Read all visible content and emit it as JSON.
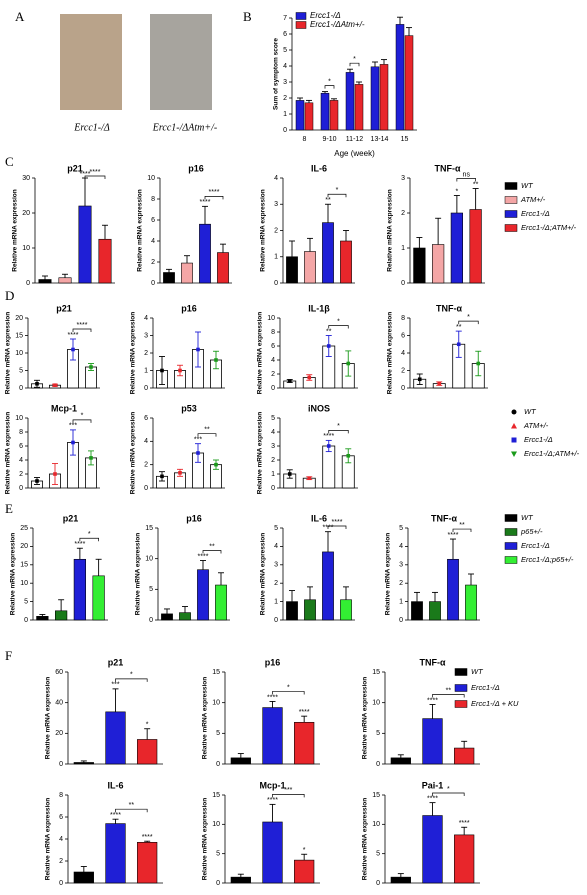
{
  "figure": {
    "panels": [
      "A",
      "B",
      "C",
      "D",
      "E",
      "F"
    ],
    "photo_captions": [
      "Ercc1-/Δ",
      "Ercc1-/ΔAtm+/-"
    ]
  },
  "legends": [
    {
      "panel": "C",
      "items": [
        {
          "name": "WT",
          "color": "#000000"
        },
        {
          "name": "ATM+/-",
          "color": "#f4a6a6"
        },
        {
          "name": "Ercc1-/Δ",
          "color": "#1f1fd6"
        },
        {
          "name": "Ercc1-/Δ;ATM+/-",
          "color": "#e8262b"
        }
      ]
    },
    {
      "panel": "D",
      "items": [
        {
          "name": "WT",
          "color": "#000000",
          "marker": "circle"
        },
        {
          "name": "ATM+/-",
          "color": "#e8262b",
          "marker": "triangle"
        },
        {
          "name": "Ercc1-/Δ",
          "color": "#1f1fd6",
          "marker": "square"
        },
        {
          "name": "Ercc1-/Δ;ATM+/-",
          "color": "#1a9a1a",
          "marker": "triangle-down"
        }
      ]
    },
    {
      "panel": "E",
      "items": [
        {
          "name": "WT",
          "color": "#000000"
        },
        {
          "name": "p65+/-",
          "color": "#1a7a1a"
        },
        {
          "name": "Ercc1-/Δ",
          "color": "#1f1fd6"
        },
        {
          "name": "Ercc1-/Δ;p65+/-",
          "color": "#33ee33"
        }
      ]
    },
    {
      "panel": "F",
      "items": [
        {
          "name": "WT",
          "color": "#000000"
        },
        {
          "name": "Ercc1-/Δ",
          "color": "#1f1fd6"
        },
        {
          "name": "Ercc1-/Δ + KU",
          "color": "#e8262b"
        }
      ]
    }
  ],
  "chart_data": [
    {
      "type": "grouped_bar",
      "ylabel": "Sum of symptom score",
      "xlabel": "Age (week)",
      "categories": [
        "8",
        "9-10",
        "11-12",
        "13-14",
        "15"
      ],
      "series": [
        {
          "name": "Ercc1-/Δ",
          "color": "#1f1fd6",
          "values": [
            1.85,
            2.3,
            3.6,
            3.95,
            6.6
          ],
          "errors": [
            0.15,
            0.1,
            0.2,
            0.3,
            0.45
          ]
        },
        {
          "name": "Ercc1-/ΔAtm+/-",
          "color": "#e8262b",
          "values": [
            1.7,
            1.85,
            2.85,
            4.1,
            5.9
          ],
          "errors": [
            0.15,
            0.1,
            0.15,
            0.3,
            0.5
          ]
        }
      ],
      "brackets": [
        {
          "category": 1,
          "label": "*"
        },
        {
          "category": 2,
          "label": "*"
        }
      ],
      "ylim": [
        0,
        7
      ],
      "yticks": [
        0,
        1,
        2,
        3,
        4,
        5,
        6,
        7
      ]
    },
    {
      "type": "bar",
      "title": "p21",
      "ylabel": "Relative mRNA expression",
      "style": "filled",
      "colors": [
        "#000000",
        "#f4a6a6",
        "#1f1fd6",
        "#e8262b"
      ],
      "values": [
        1,
        1.5,
        22,
        12.5
      ],
      "errors": [
        1,
        1,
        8,
        4
      ],
      "stars": [
        null,
        null,
        "****",
        null
      ],
      "bracket": {
        "from": 2,
        "to": 3,
        "label": "****"
      },
      "ylim": [
        0,
        30
      ],
      "yticks": [
        0,
        10,
        20,
        30
      ]
    },
    {
      "type": "bar",
      "title": "p16",
      "ylabel": "Relative mRNA expression",
      "style": "filled",
      "colors": [
        "#000000",
        "#f4a6a6",
        "#1f1fd6",
        "#e8262b"
      ],
      "values": [
        1,
        1.9,
        5.6,
        2.9
      ],
      "errors": [
        0.3,
        0.7,
        1.7,
        0.8
      ],
      "stars": [
        null,
        null,
        "****",
        null
      ],
      "bracket": {
        "from": 2,
        "to": 3,
        "label": "****"
      },
      "ylim": [
        0,
        10
      ],
      "yticks": [
        0,
        2,
        4,
        6,
        8,
        10
      ]
    },
    {
      "type": "bar",
      "title": "IL-6",
      "ylabel": "Relative mRNA expression",
      "style": "filled",
      "colors": [
        "#000000",
        "#f4a6a6",
        "#1f1fd6",
        "#e8262b"
      ],
      "values": [
        1,
        1.2,
        2.3,
        1.6
      ],
      "errors": [
        0.6,
        0.5,
        0.7,
        0.4
      ],
      "stars": [
        null,
        null,
        "**",
        null
      ],
      "bracket": {
        "from": 2,
        "to": 3,
        "label": "*"
      },
      "ylim": [
        0,
        4
      ],
      "yticks": [
        0,
        1,
        2,
        3,
        4
      ]
    },
    {
      "type": "bar",
      "title": "TNF-α",
      "ylabel": "Relative mRNA expression",
      "style": "filled",
      "colors": [
        "#000000",
        "#f4a6a6",
        "#1f1fd6",
        "#e8262b"
      ],
      "values": [
        1,
        1.1,
        2.0,
        2.1
      ],
      "errors": [
        0.3,
        0.75,
        0.5,
        0.6
      ],
      "stars": [
        null,
        null,
        "*",
        "**"
      ],
      "bracket": {
        "from": 2,
        "to": 3,
        "label": "ns"
      },
      "ylim": [
        0,
        3
      ],
      "yticks": [
        0,
        1,
        2,
        3
      ]
    },
    {
      "type": "bar",
      "title": "p21",
      "ylabel": "Relative mRNA expression",
      "style": "outline",
      "colors": [
        "#000000",
        "#e8262b",
        "#1f1fd6",
        "#1a9a1a"
      ],
      "values": [
        1.2,
        0.8,
        11,
        6
      ],
      "errors": [
        1,
        0.3,
        3,
        1
      ],
      "stars": [
        null,
        null,
        "****",
        null
      ],
      "bracket": {
        "from": 2,
        "to": 3,
        "label": "****"
      },
      "ylim": [
        0,
        20
      ],
      "yticks": [
        0,
        5,
        10,
        15,
        20
      ]
    },
    {
      "type": "bar",
      "title": "p16",
      "ylabel": "Relative mRNA expression",
      "style": "outline",
      "colors": [
        "#000000",
        "#e8262b",
        "#1f1fd6",
        "#1a9a1a"
      ],
      "values": [
        1,
        1,
        2.2,
        1.6
      ],
      "errors": [
        0.8,
        0.3,
        1,
        0.5
      ],
      "stars": [
        null,
        null,
        null,
        null
      ],
      "ylim": [
        0,
        4
      ],
      "yticks": [
        0,
        1,
        2,
        3,
        4
      ]
    },
    {
      "type": "bar",
      "title": "IL-1β",
      "ylabel": "Relative mRNA expression",
      "style": "outline",
      "colors": [
        "#000000",
        "#e8262b",
        "#1f1fd6",
        "#1a9a1a"
      ],
      "values": [
        1,
        1.5,
        6,
        3.5
      ],
      "errors": [
        0.2,
        0.4,
        1.5,
        1.8
      ],
      "stars": [
        null,
        null,
        "**",
        null
      ],
      "bracket": {
        "from": 2,
        "to": 3,
        "label": "*"
      },
      "ylim": [
        0,
        10
      ],
      "yticks": [
        0,
        2,
        4,
        6,
        8,
        10
      ]
    },
    {
      "type": "bar",
      "title": "TNF-α",
      "ylabel": "Relative mRNA expression",
      "style": "outline",
      "colors": [
        "#000000",
        "#e8262b",
        "#1f1fd6",
        "#1a9a1a"
      ],
      "values": [
        1,
        0.5,
        5,
        2.8
      ],
      "errors": [
        0.6,
        0.2,
        1.5,
        1.4
      ],
      "stars": [
        null,
        null,
        "**",
        null
      ],
      "bracket": {
        "from": 2,
        "to": 3,
        "label": "*"
      },
      "ylim": [
        0,
        8
      ],
      "yticks": [
        0,
        2,
        4,
        6,
        8
      ]
    },
    {
      "type": "bar",
      "title": "Mcp-1",
      "ylabel": "Relative mRNA expression",
      "style": "outline",
      "colors": [
        "#000000",
        "#e8262b",
        "#1f1fd6",
        "#1a9a1a"
      ],
      "values": [
        1,
        2,
        6.5,
        4.3
      ],
      "errors": [
        0.5,
        1.5,
        1.8,
        1
      ],
      "stars": [
        null,
        null,
        "***",
        null
      ],
      "bracket": {
        "from": 2,
        "to": 3,
        "label": "*"
      },
      "ylim": [
        0,
        10
      ],
      "yticks": [
        0,
        2,
        4,
        6,
        8,
        10
      ]
    },
    {
      "type": "bar",
      "title": "p53",
      "ylabel": "Relative mRNA expression",
      "style": "outline",
      "colors": [
        "#000000",
        "#e8262b",
        "#1f1fd6",
        "#1a9a1a"
      ],
      "values": [
        1,
        1.3,
        3,
        2
      ],
      "errors": [
        0.4,
        0.3,
        0.8,
        0.4
      ],
      "stars": [
        null,
        null,
        "***",
        null
      ],
      "bracket": {
        "from": 2,
        "to": 3,
        "label": "**"
      },
      "ylim": [
        0,
        6
      ],
      "yticks": [
        0,
        2,
        4,
        6
      ]
    },
    {
      "type": "bar",
      "title": "iNOS",
      "ylabel": "Relative mRNA expression",
      "style": "outline",
      "colors": [
        "#000000",
        "#e8262b",
        "#1f1fd6",
        "#1a9a1a"
      ],
      "values": [
        1,
        0.7,
        3,
        2.3
      ],
      "errors": [
        0.3,
        0.1,
        0.4,
        0.5
      ],
      "stars": [
        null,
        null,
        "****",
        null
      ],
      "bracket": {
        "from": 2,
        "to": 3,
        "label": "*"
      },
      "ylim": [
        0,
        5
      ],
      "yticks": [
        0,
        1,
        2,
        3,
        4,
        5
      ]
    },
    {
      "type": "bar",
      "title": "p21",
      "ylabel": "Relative mRNA expression",
      "style": "filled",
      "colors": [
        "#000000",
        "#1a7a1a",
        "#1f1fd6",
        "#33ee33"
      ],
      "values": [
        1,
        2.5,
        16.5,
        12
      ],
      "errors": [
        0.5,
        3,
        3,
        4.5
      ],
      "stars": [
        null,
        null,
        "****",
        null
      ],
      "bracket": {
        "from": 2,
        "to": 3,
        "label": "*"
      },
      "ylim": [
        0,
        25
      ],
      "yticks": [
        0,
        5,
        10,
        15,
        20,
        25
      ]
    },
    {
      "type": "bar",
      "title": "p16",
      "ylabel": "Relative mRNA expression",
      "style": "filled",
      "colors": [
        "#000000",
        "#1a7a1a",
        "#1f1fd6",
        "#33ee33"
      ],
      "values": [
        1,
        1.2,
        8.2,
        5.7
      ],
      "errors": [
        0.8,
        1,
        1.5,
        2
      ],
      "stars": [
        null,
        null,
        "****",
        null
      ],
      "bracket": {
        "from": 2,
        "to": 3,
        "label": "**"
      },
      "ylim": [
        0,
        15
      ],
      "yticks": [
        0,
        5,
        10,
        15
      ]
    },
    {
      "type": "bar",
      "title": "IL-6",
      "ylabel": "Relative mRNA expression",
      "style": "filled",
      "colors": [
        "#000000",
        "#1a7a1a",
        "#1f1fd6",
        "#33ee33"
      ],
      "values": [
        1,
        1.1,
        3.7,
        1.1
      ],
      "errors": [
        0.6,
        0.7,
        1.1,
        0.7
      ],
      "stars": [
        null,
        null,
        "****",
        null
      ],
      "bracket": {
        "from": 2,
        "to": 3,
        "label": "****"
      },
      "ylim": [
        0,
        5
      ],
      "yticks": [
        0,
        1,
        2,
        3,
        4,
        5
      ]
    },
    {
      "type": "bar",
      "title": "TNF-α",
      "ylabel": "Relative mRNA expression",
      "style": "filled",
      "colors": [
        "#000000",
        "#1a7a1a",
        "#1f1fd6",
        "#33ee33"
      ],
      "values": [
        1,
        1,
        3.3,
        1.9
      ],
      "errors": [
        0.5,
        0.5,
        1.1,
        0.6
      ],
      "stars": [
        null,
        null,
        "****",
        null
      ],
      "bracket": {
        "from": 2,
        "to": 3,
        "label": "**"
      },
      "ylim": [
        0,
        5
      ],
      "yticks": [
        0,
        1,
        2,
        3,
        4,
        5
      ]
    },
    {
      "type": "bar",
      "title": "p21",
      "ylabel": "Relative mRNA expression",
      "style": "filled",
      "colors": [
        "#000000",
        "#1f1fd6",
        "#e8262b"
      ],
      "values": [
        1,
        34,
        16
      ],
      "errors": [
        1,
        15,
        7
      ],
      "stars": [
        null,
        "***",
        "*"
      ],
      "bracket": {
        "from": 1,
        "to": 2,
        "label": "*"
      },
      "ylim": [
        0,
        60
      ],
      "yticks": [
        0,
        20,
        40,
        60
      ]
    },
    {
      "type": "bar",
      "title": "p16",
      "ylabel": "Relative mRNA expression",
      "style": "filled",
      "colors": [
        "#000000",
        "#1f1fd6",
        "#e8262b"
      ],
      "values": [
        1,
        9.2,
        6.8
      ],
      "errors": [
        0.7,
        1,
        1
      ],
      "stars": [
        null,
        "****",
        "****"
      ],
      "bracket": {
        "from": 1,
        "to": 2,
        "label": "*"
      },
      "ylim": [
        0,
        15
      ],
      "yticks": [
        0,
        5,
        10,
        15
      ]
    },
    {
      "type": "bar",
      "title": "TNF-α",
      "ylabel": "Relative mRNA expression",
      "style": "filled",
      "colors": [
        "#000000",
        "#1f1fd6",
        "#e8262b"
      ],
      "values": [
        1,
        7.4,
        2.6
      ],
      "errors": [
        0.5,
        2.3,
        1.1
      ],
      "stars": [
        null,
        "****",
        null
      ],
      "bracket": {
        "from": 1,
        "to": 2,
        "label": "**"
      },
      "ylim": [
        0,
        15
      ],
      "yticks": [
        0,
        5,
        10,
        15
      ]
    },
    {
      "type": "bar",
      "title": "IL-6",
      "ylabel": "Relative mRNA expression",
      "style": "filled",
      "colors": [
        "#000000",
        "#1f1fd6",
        "#e8262b"
      ],
      "values": [
        1,
        5.4,
        3.7
      ],
      "errors": [
        0.5,
        0.4,
        0.1
      ],
      "stars": [
        null,
        "****",
        "****"
      ],
      "bracket": {
        "from": 1,
        "to": 2,
        "label": "**"
      },
      "ylim": [
        0,
        8
      ],
      "yticks": [
        0,
        2,
        4,
        6,
        8
      ]
    },
    {
      "type": "bar",
      "title": "Mcp-1",
      "ylabel": "Relative mRNA expression",
      "style": "filled",
      "colors": [
        "#000000",
        "#1f1fd6",
        "#e8262b"
      ],
      "values": [
        1,
        10.4,
        3.9
      ],
      "errors": [
        0.5,
        3,
        1
      ],
      "stars": [
        null,
        "****",
        "*"
      ],
      "bracket": {
        "from": 1,
        "to": 2,
        "label": "***"
      },
      "ylim": [
        0,
        15
      ],
      "yticks": [
        0,
        5,
        10,
        15
      ]
    },
    {
      "type": "bar",
      "title": "Pai-1",
      "ylabel": "Relative mRNA expression",
      "style": "filled",
      "colors": [
        "#000000",
        "#1f1fd6",
        "#e8262b"
      ],
      "values": [
        1,
        11.5,
        8.2
      ],
      "errors": [
        0.6,
        2.2,
        1.3
      ],
      "stars": [
        null,
        "****",
        "****"
      ],
      "bracket": {
        "from": 1,
        "to": 2,
        "label": "*"
      },
      "ylim": [
        0,
        15
      ],
      "yticks": [
        0,
        5,
        10,
        15
      ]
    }
  ]
}
